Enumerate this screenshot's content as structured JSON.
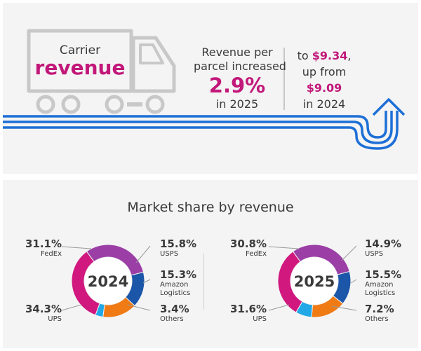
{
  "header": {
    "label_line1": "Carrier",
    "label_line2": "revenue",
    "stat_line1": "Revenue per",
    "stat_line2": "parcel increased",
    "stat_value": "2.9%",
    "stat_line3": "in 2025",
    "compare_prefix": "to ",
    "compare_new_value": "$9.34",
    "compare_suffix": ",",
    "compare_line2": "up from",
    "compare_old_value": "$9.09",
    "compare_line4": "in 2024"
  },
  "colors": {
    "magenta": "#c2187a",
    "truck_gray": "#c8c8c8",
    "arrow_blue": "#1d6fd6",
    "fedex": "#9b3fa6",
    "usps": "#1b56a8",
    "amazon": "#f07a14",
    "others": "#22a8e6",
    "ups": "#d0187f"
  },
  "chart_data": {
    "type": "pie",
    "title": "Market share by revenue",
    "unit": "%",
    "categories": [
      "FedEx",
      "USPS",
      "Amazon Logistics",
      "Others",
      "UPS"
    ],
    "charts": [
      {
        "center_label": "2024",
        "values": [
          31.1,
          15.8,
          15.3,
          3.4,
          34.3
        ],
        "labels": {
          "fedex": {
            "value": "31.1%",
            "name": "FedEx"
          },
          "usps": {
            "value": "15.8%",
            "name": "USPS"
          },
          "amazon": {
            "value": "15.3%",
            "name1": "Amazon",
            "name2": "Logistics"
          },
          "others": {
            "value": "3.4%",
            "name": "Others"
          },
          "ups": {
            "value": "34.3%",
            "name": "UPS"
          }
        }
      },
      {
        "center_label": "2025",
        "values": [
          30.8,
          14.9,
          15.5,
          7.2,
          31.6
        ],
        "labels": {
          "fedex": {
            "value": "30.8%",
            "name": "FedEx"
          },
          "usps": {
            "value": "14.9%",
            "name": "USPS"
          },
          "amazon": {
            "value": "15.5%",
            "name1": "Amazon",
            "name2": "Logistics"
          },
          "others": {
            "value": "7.2%",
            "name": "Others"
          },
          "ups": {
            "value": "31.6%",
            "name": "UPS"
          }
        }
      }
    ]
  }
}
